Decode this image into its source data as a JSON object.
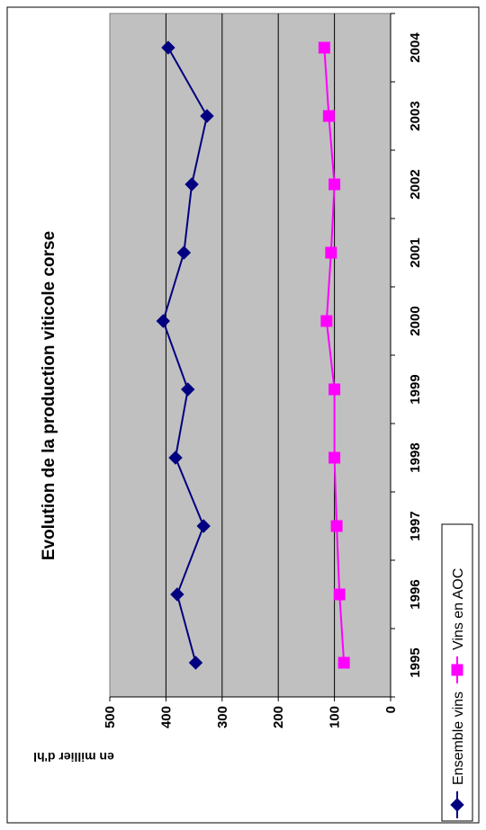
{
  "chart_data": {
    "type": "line",
    "title": "Evolution de la production viticole corse",
    "ylabel": "en millier d'hl",
    "xlabel": "",
    "categories": [
      "1995",
      "1996",
      "1997",
      "1998",
      "1999",
      "2000",
      "2001",
      "2002",
      "2003",
      "2004"
    ],
    "ylim": [
      0,
      500
    ],
    "yticks": [
      "0",
      "100",
      "200",
      "300",
      "400",
      "500"
    ],
    "grid": true,
    "legend_position": "bottom",
    "series": [
      {
        "name": "Ensemble vins",
        "color": "#000080",
        "marker": "diamond",
        "values": [
          347,
          380,
          333,
          383,
          361,
          405,
          368,
          354,
          327,
          396
        ]
      },
      {
        "name": "Vins en AOC",
        "color": "#ff00ff",
        "marker": "square",
        "values": [
          83,
          91,
          96,
          100,
          100,
          114,
          106,
          100,
          110,
          118
        ]
      }
    ],
    "colors": {
      "plot_background": "#c0c0c0",
      "gridline": "#000000"
    }
  }
}
